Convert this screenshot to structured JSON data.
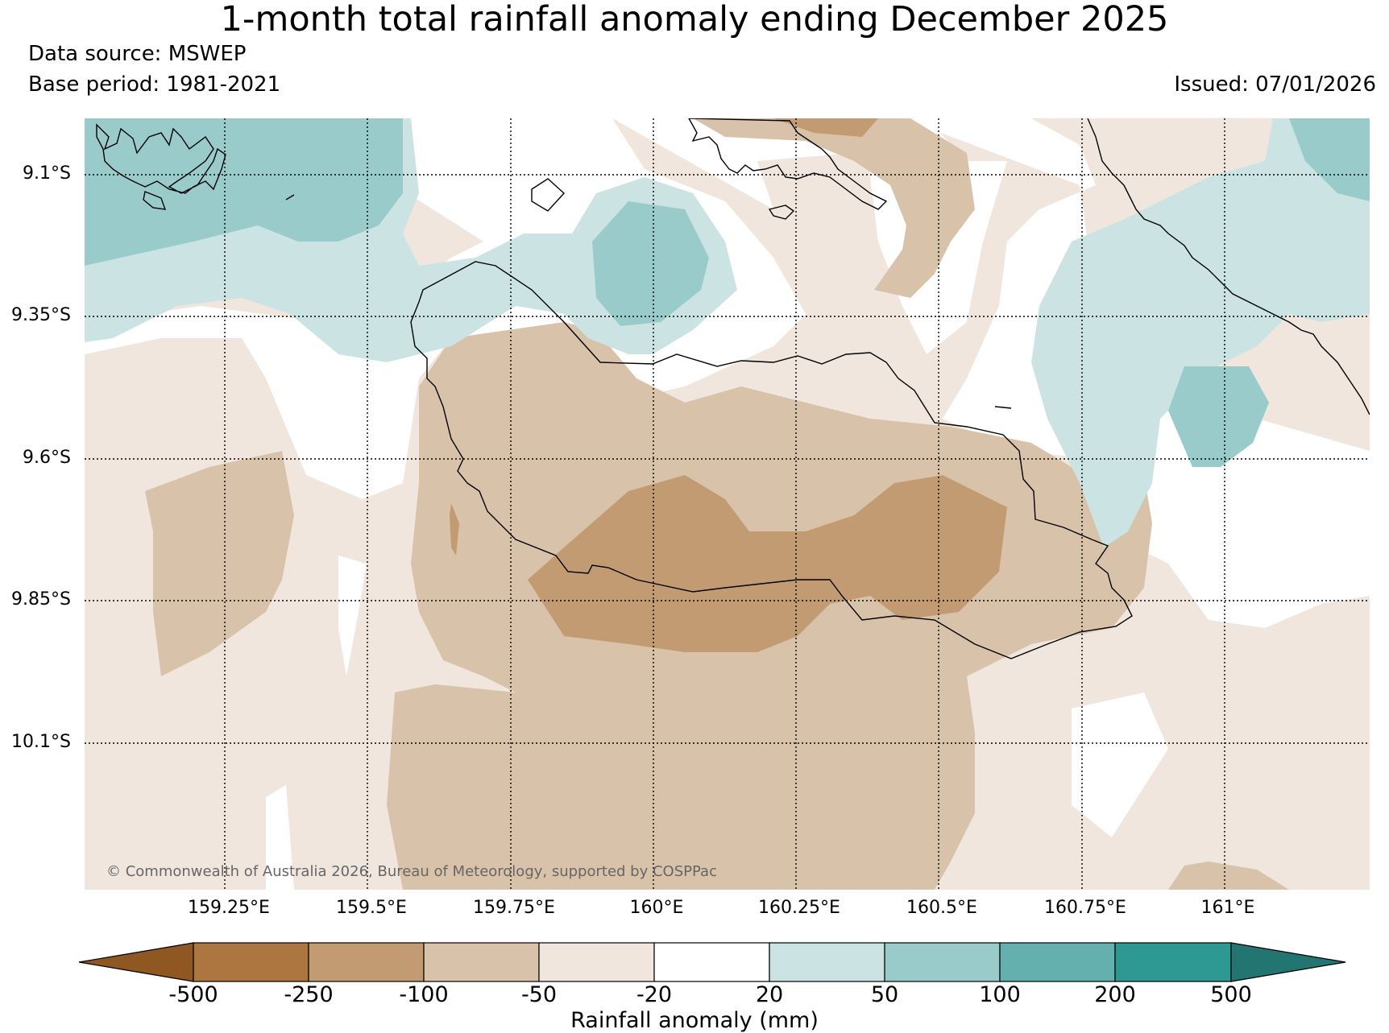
{
  "title": "1-month total rainfall anomaly ending December 2025",
  "data_source": "Data source: MSWEP",
  "base_period": "Base period: 1981-2021",
  "issued": "Issued: 07/01/2026",
  "credit": "© Commonwealth of Australia 2026, Bureau of Meteorology, supported by COSPPac",
  "map": {
    "latitude_labels": [
      "9.1°S",
      "9.35°S",
      "9.6°S",
      "9.85°S",
      "10.1°S"
    ],
    "longitude_labels": [
      "159.25°E",
      "159.5°E",
      "159.75°E",
      "160°E",
      "160.25°E",
      "160.5°E",
      "160.75°E",
      "161°E"
    ],
    "latitude_values": [
      -9.1,
      -9.35,
      -9.6,
      -9.85,
      -10.1
    ],
    "longitude_values": [
      159.25,
      159.5,
      159.75,
      160.0,
      160.25,
      160.5,
      160.75,
      161.0
    ]
  },
  "colorbar": {
    "title": "Rainfall anomaly (mm)",
    "tick_labels": [
      "-500",
      "-250",
      "-100",
      "-50",
      "-20",
      "20",
      "50",
      "100",
      "200",
      "500"
    ],
    "colors": {
      "below_-500": "#8f5822",
      "-500_to_-250": "#ad753f",
      "-250_to_-100": "#c29b72",
      "-100_to_-50": "#d9c2aa",
      "-50_to_-20": "#f0e6dd",
      "-20_to_20": "#ffffff",
      "20_to_50": "#cbe4e3",
      "50_to_100": "#99cbca",
      "100_to_200": "#63b0ae",
      "200_to_500": "#2e9893",
      "above_500": "#227571"
    }
  }
}
